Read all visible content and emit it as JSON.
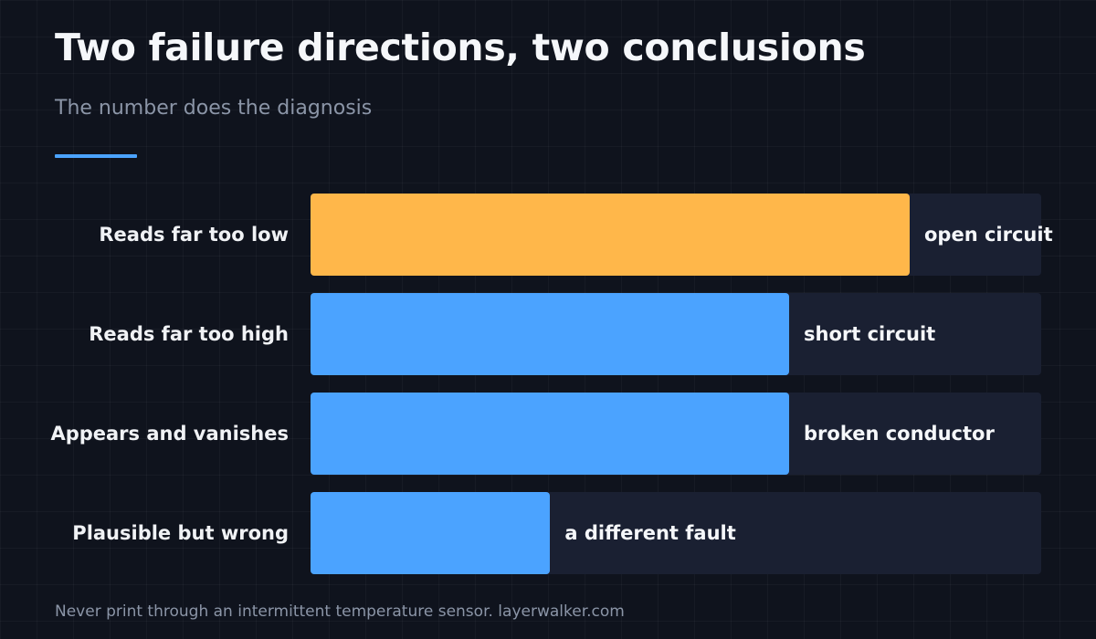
{
  "title": "Two failure directions, two conclusions",
  "subtitle": "The number does the diagnosis",
  "footer": "Never print through an intermittent temperature sensor. layerwalker.com",
  "colors": {
    "background": "#0f131d",
    "accent": "#4ba3ff",
    "highlight": "#ffb74a",
    "track": "#1a2032",
    "muted_text": "#8b95a7"
  },
  "chart_data": {
    "type": "bar",
    "orientation": "horizontal",
    "categories": [
      "Reads far too low",
      "Reads far too high",
      "Appears and vanishes",
      "Plausible but wrong"
    ],
    "values": [
      82,
      65.5,
      65.5,
      32.8
    ],
    "value_labels": [
      "open circuit",
      "short circuit",
      "broken conductor",
      "a different fault"
    ],
    "highlighted_index": 0,
    "bar_colors": [
      "#ffb74a",
      "#4ba3ff",
      "#4ba3ff",
      "#4ba3ff"
    ],
    "xlim": [
      0,
      100
    ],
    "title": "Two failure directions, two conclusions",
    "subtitle": "The number does the diagnosis",
    "xlabel": "",
    "ylabel": "",
    "grid": false,
    "legend": "none"
  }
}
